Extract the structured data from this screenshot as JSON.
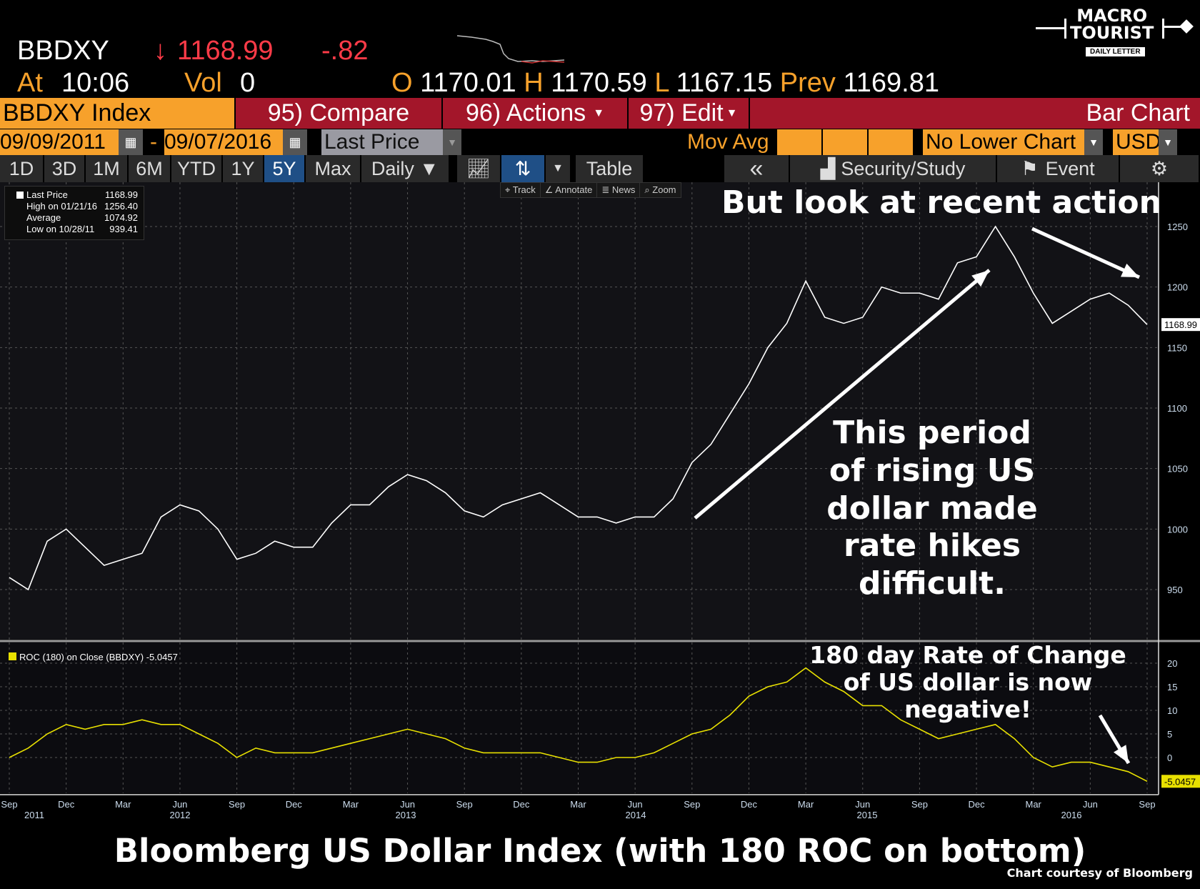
{
  "header": {
    "ticker": "BBDXY",
    "arrow": "↓",
    "last": "1168.99",
    "change": "-.82",
    "at_label": "At",
    "time": "10:06",
    "vol_label": "Vol",
    "vol": "0",
    "o_label": "O",
    "open": "1170.01",
    "h_label": "H",
    "high": "1170.59",
    "l_label": "L",
    "low": "1167.15",
    "prev_label": "Prev",
    "prev": "1169.81"
  },
  "logo": {
    "line1": "MACRO",
    "line2": "TOURIST",
    "line3": "DAILY LETTER"
  },
  "menubar": {
    "security": "BBDXY Index",
    "compare": "95) Compare",
    "actions": "96) Actions",
    "edit": "97) Edit",
    "chart_type": "Bar Chart"
  },
  "settings": {
    "start_date": "09/09/2011",
    "dash": "-",
    "end_date": "09/07/2016",
    "field": "Last Price",
    "mov_avg": "Mov Avg",
    "lower_chart": "No Lower Chart",
    "currency": "USD"
  },
  "toolbar": {
    "ranges": [
      "1D",
      "3D",
      "1M",
      "6M",
      "YTD",
      "1Y",
      "5Y",
      "Max"
    ],
    "selected_range": "5Y",
    "period": "Daily ▼",
    "table": "Table",
    "back": "«",
    "security_study": "Security/Study",
    "event": "Event"
  },
  "tools": [
    "Track",
    "Annotate",
    "News",
    "Zoom"
  ],
  "legend": [
    {
      "label": "Last Price",
      "value": "1168.99"
    },
    {
      "label": "High on 01/21/16",
      "value": "1256.40"
    },
    {
      "label": "Average",
      "value": "1074.92"
    },
    {
      "label": "Low on 10/28/11",
      "value": "939.41"
    }
  ],
  "lower_legend": "ROC (180) on Close (BBDXY) -5.0457",
  "annotations": {
    "top": "But look at recent action",
    "middle": "This period\nof rising US\ndollar made\nrate hikes\ndifficult.",
    "lower": "180 day Rate of Change\nof US dollar is now negative!"
  },
  "caption": "Bloomberg US Dollar Index (with 180 ROC on bottom)",
  "credit": "Chart courtesy of Bloomberg",
  "colors": {
    "orange": "#f7a12b",
    "red": "#a3162a",
    "price_line": "#ffffff",
    "roc_line": "#e8e000",
    "selected": "#1f4f86"
  },
  "chart_data": [
    {
      "type": "line",
      "series": [
        {
          "name": "Last Price",
          "values": [
            960,
            950,
            990,
            1000,
            985,
            970,
            975,
            980,
            1010,
            1020,
            1015,
            1000,
            975,
            980,
            990,
            985,
            985,
            1005,
            1020,
            1020,
            1035,
            1045,
            1040,
            1030,
            1015,
            1010,
            1020,
            1025,
            1030,
            1020,
            1010,
            1010,
            1005,
            1010,
            1010,
            1025,
            1055,
            1070,
            1095,
            1120,
            1150,
            1170,
            1205,
            1175,
            1170,
            1175,
            1200,
            1195,
            1195,
            1190,
            1220,
            1225,
            1250,
            1225,
            1195,
            1170,
            1180,
            1190,
            1195,
            1185,
            1168.99
          ]
        }
      ],
      "x_start": "2011-09",
      "x_step": "month",
      "ylim": [
        900,
        1275
      ],
      "yticks": [
        950,
        1000,
        1050,
        1100,
        1150,
        1200,
        1250
      ],
      "last_value_label": "1168.99",
      "grid": true
    },
    {
      "type": "line",
      "series": [
        {
          "name": "ROC (180) on Close (BBDXY)",
          "values": [
            0,
            2,
            5,
            7,
            6,
            7,
            7,
            8,
            7,
            7,
            5,
            3,
            0,
            2,
            1,
            1,
            1,
            2,
            3,
            4,
            5,
            6,
            5,
            4,
            2,
            1,
            1,
            1,
            1,
            0,
            -1,
            -1,
            0,
            0,
            1,
            3,
            5,
            6,
            9,
            13,
            15,
            16,
            19,
            16,
            14,
            11,
            11,
            8,
            6,
            4,
            5,
            6,
            7,
            4,
            0,
            -2,
            -1,
            -1,
            -2,
            -3,
            -5.0457
          ]
        }
      ],
      "x_start": "2011-09",
      "x_step": "month",
      "ylim": [
        -7,
        23
      ],
      "yticks": [
        0,
        5,
        10,
        15,
        20
      ],
      "last_value_label": "-5.0457",
      "grid": true,
      "xticks": [
        "Sep",
        "Dec",
        "Mar",
        "Jun",
        "Sep",
        "Dec",
        "Mar",
        "Jun",
        "Sep",
        "Dec",
        "Mar",
        "Jun",
        "Sep",
        "Dec",
        "Mar",
        "Jun",
        "Sep",
        "Dec",
        "Mar",
        "Jun",
        "Sep"
      ],
      "years": [
        "2011",
        "2012",
        "2013",
        "2014",
        "2015",
        "2016"
      ]
    }
  ]
}
